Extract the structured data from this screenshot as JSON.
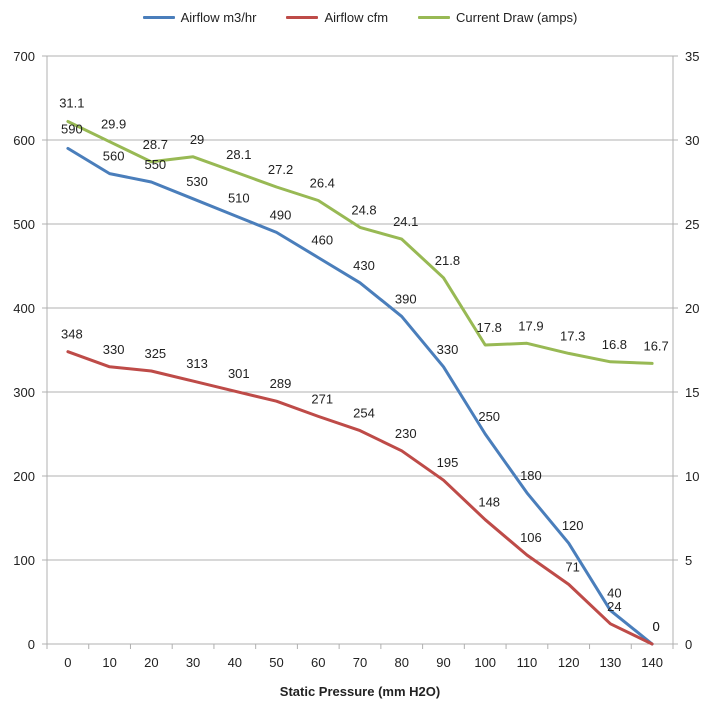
{
  "chart_data": {
    "type": "line",
    "xlabel": "Static Pressure (mm H2O)",
    "x": [
      0,
      10,
      20,
      30,
      40,
      50,
      60,
      70,
      80,
      90,
      100,
      110,
      120,
      130,
      140
    ],
    "ylim": [
      0,
      700
    ],
    "yticks": [
      0,
      100,
      200,
      300,
      400,
      500,
      600,
      700
    ],
    "y2lim": [
      0,
      35
    ],
    "y2ticks": [
      0,
      5,
      10,
      15,
      20,
      25,
      30,
      35
    ],
    "grid": true,
    "legend_position": "top",
    "series": [
      {
        "name": "Airflow m3/hr",
        "color": "#4a7ebb",
        "axis": "left",
        "values": [
          590,
          560,
          550,
          530,
          510,
          490,
          460,
          430,
          390,
          330,
          250,
          180,
          120,
          40,
          0
        ]
      },
      {
        "name": "Airflow cfm",
        "color": "#be4b48",
        "axis": "left",
        "values": [
          348,
          330,
          325,
          313,
          301,
          289,
          271,
          254,
          230,
          195,
          148,
          106,
          71,
          24,
          0
        ]
      },
      {
        "name": "Current Draw (amps)",
        "color": "#98b954",
        "axis": "right",
        "values": [
          31.1,
          29.9,
          28.7,
          29,
          28.1,
          27.2,
          26.4,
          24.8,
          24.1,
          21.8,
          17.8,
          17.9,
          17.3,
          16.8,
          16.7
        ]
      }
    ]
  }
}
